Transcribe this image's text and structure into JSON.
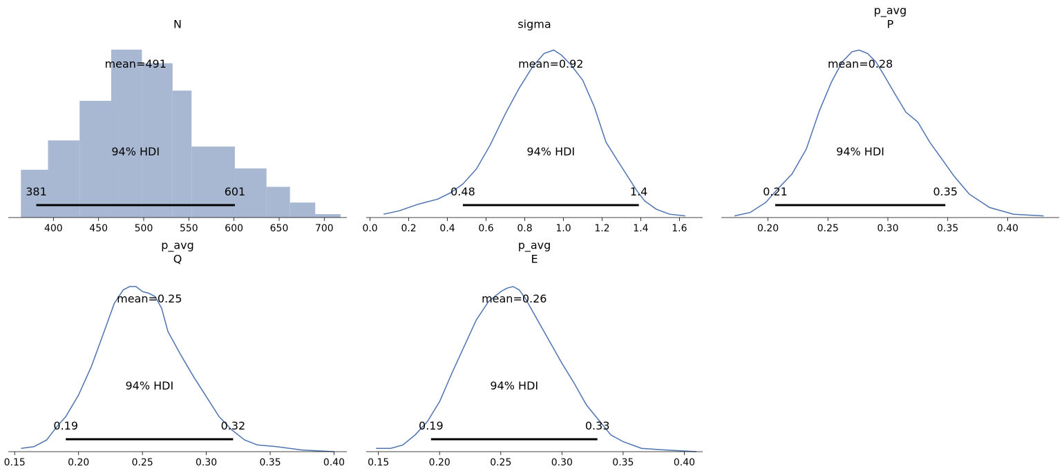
{
  "colors": {
    "series": "#4c72b0",
    "hist": "#a8b8d3",
    "hdi": "#000000"
  },
  "chart_data": [
    {
      "type": "bar",
      "title_lines": [
        "N"
      ],
      "mean_label": "mean=491",
      "hdi_label": "94% HDI",
      "hdi": [
        381,
        601
      ],
      "hdi_labels": [
        "381",
        "601"
      ],
      "bin_edges": [
        364,
        394,
        429,
        464,
        498,
        532,
        553,
        601,
        636,
        662,
        690,
        718
      ],
      "values": [
        7.0,
        11.3,
        17.1,
        24.6,
        22.6,
        18.6,
        10.4,
        7.2,
        4.5,
        2.2,
        0.5
      ],
      "ticks": [
        400,
        450,
        500,
        550,
        600,
        650,
        700
      ],
      "tick_labels": [
        "400",
        "450",
        "500",
        "550",
        "600",
        "650",
        "700"
      ],
      "xlim": [
        350,
        725
      ],
      "ylim": [
        0,
        26
      ]
    },
    {
      "type": "line",
      "title_lines": [
        "sigma"
      ],
      "mean_label": "mean=0.92",
      "hdi_label": "94% HDI",
      "hdi": [
        0.48,
        1.39
      ],
      "hdi_labels": [
        "0.48",
        "1.4"
      ],
      "x": [
        0.07,
        0.15,
        0.25,
        0.35,
        0.42,
        0.48,
        0.55,
        0.62,
        0.7,
        0.77,
        0.84,
        0.9,
        0.95,
        0.99,
        1.04,
        1.1,
        1.16,
        1.22,
        1.28,
        1.33,
        1.38,
        1.42,
        1.48,
        1.55,
        1.63
      ],
      "y": [
        0.02,
        0.04,
        0.08,
        0.11,
        0.15,
        0.2,
        0.29,
        0.43,
        0.62,
        0.77,
        0.9,
        0.98,
        1.0,
        0.97,
        0.91,
        0.82,
        0.66,
        0.45,
        0.34,
        0.25,
        0.16,
        0.1,
        0.05,
        0.02,
        0.01
      ],
      "ticks": [
        0.0,
        0.2,
        0.4,
        0.6,
        0.8,
        1.0,
        1.2,
        1.4,
        1.6
      ],
      "tick_labels": [
        "0.0",
        "0.2",
        "0.4",
        "0.6",
        "0.8",
        "1.0",
        "1.2",
        "1.4",
        "1.6"
      ],
      "xlim": [
        -0.02,
        1.72
      ],
      "ylim": [
        0,
        1.06
      ]
    },
    {
      "type": "line",
      "title_lines": [
        "p_avg",
        "P"
      ],
      "mean_label": "mean=0.28",
      "hdi_label": "94% HDI",
      "hdi": [
        0.206,
        0.348
      ],
      "hdi_labels": [
        "0.21",
        "0.35"
      ],
      "x": [
        0.172,
        0.185,
        0.198,
        0.208,
        0.22,
        0.232,
        0.243,
        0.253,
        0.262,
        0.27,
        0.276,
        0.283,
        0.29,
        0.296,
        0.305,
        0.315,
        0.325,
        0.335,
        0.345,
        0.355,
        0.368,
        0.385,
        0.405,
        0.43
      ],
      "y": [
        0.01,
        0.03,
        0.09,
        0.17,
        0.26,
        0.41,
        0.64,
        0.81,
        0.93,
        0.99,
        1.0,
        0.98,
        0.93,
        0.86,
        0.75,
        0.63,
        0.57,
        0.45,
        0.35,
        0.25,
        0.14,
        0.06,
        0.02,
        0.01
      ],
      "ticks": [
        0.2,
        0.25,
        0.3,
        0.35,
        0.4
      ],
      "tick_labels": [
        "0.20",
        "0.25",
        "0.30",
        "0.35",
        "0.40"
      ],
      "xlim": [
        0.161,
        0.443
      ],
      "ylim": [
        0,
        1.06
      ]
    },
    {
      "type": "line",
      "title_lines": [
        "p_avg",
        "Q"
      ],
      "mean_label": "mean=0.25",
      "hdi_label": "94% HDI",
      "hdi": [
        0.19,
        0.321
      ],
      "hdi_labels": [
        "0.19",
        "0.32"
      ],
      "x": [
        0.155,
        0.165,
        0.175,
        0.183,
        0.19,
        0.2,
        0.21,
        0.22,
        0.228,
        0.235,
        0.24,
        0.245,
        0.25,
        0.255,
        0.26,
        0.265,
        0.27,
        0.28,
        0.29,
        0.3,
        0.31,
        0.32,
        0.33,
        0.34,
        0.355,
        0.375,
        0.4
      ],
      "y": [
        0.02,
        0.03,
        0.07,
        0.15,
        0.21,
        0.34,
        0.51,
        0.72,
        0.89,
        0.97,
        0.99,
        0.99,
        0.96,
        0.95,
        0.93,
        0.86,
        0.72,
        0.58,
        0.45,
        0.33,
        0.21,
        0.13,
        0.07,
        0.04,
        0.03,
        0.01,
        0.0
      ],
      "ticks": [
        0.15,
        0.2,
        0.25,
        0.3,
        0.35,
        0.4
      ],
      "tick_labels": [
        "0.15",
        "0.20",
        "0.25",
        "0.30",
        "0.35",
        "0.40"
      ],
      "xlim": [
        0.145,
        0.41
      ],
      "ylim": [
        0,
        1.06
      ]
    },
    {
      "type": "line",
      "title_lines": [
        "p_avg",
        "E"
      ],
      "mean_label": "mean=0.26",
      "hdi_label": "94% HDI",
      "hdi": [
        0.193,
        0.329
      ],
      "hdi_labels": [
        "0.19",
        "0.33"
      ],
      "x": [
        0.148,
        0.16,
        0.17,
        0.18,
        0.19,
        0.2,
        0.21,
        0.22,
        0.23,
        0.24,
        0.25,
        0.255,
        0.26,
        0.265,
        0.27,
        0.28,
        0.29,
        0.3,
        0.31,
        0.32,
        0.33,
        0.34,
        0.35,
        0.365,
        0.385,
        0.41
      ],
      "y": [
        0.02,
        0.02,
        0.04,
        0.1,
        0.18,
        0.3,
        0.47,
        0.63,
        0.79,
        0.9,
        0.96,
        0.98,
        0.99,
        0.97,
        0.92,
        0.79,
        0.66,
        0.53,
        0.41,
        0.28,
        0.19,
        0.1,
        0.06,
        0.02,
        0.01,
        0.0
      ],
      "ticks": [
        0.15,
        0.2,
        0.25,
        0.3,
        0.35,
        0.4
      ],
      "tick_labels": [
        "0.15",
        "0.20",
        "0.25",
        "0.30",
        "0.35",
        "0.40"
      ],
      "xlim": [
        0.14,
        0.415
      ],
      "ylim": [
        0,
        1.06
      ]
    }
  ]
}
